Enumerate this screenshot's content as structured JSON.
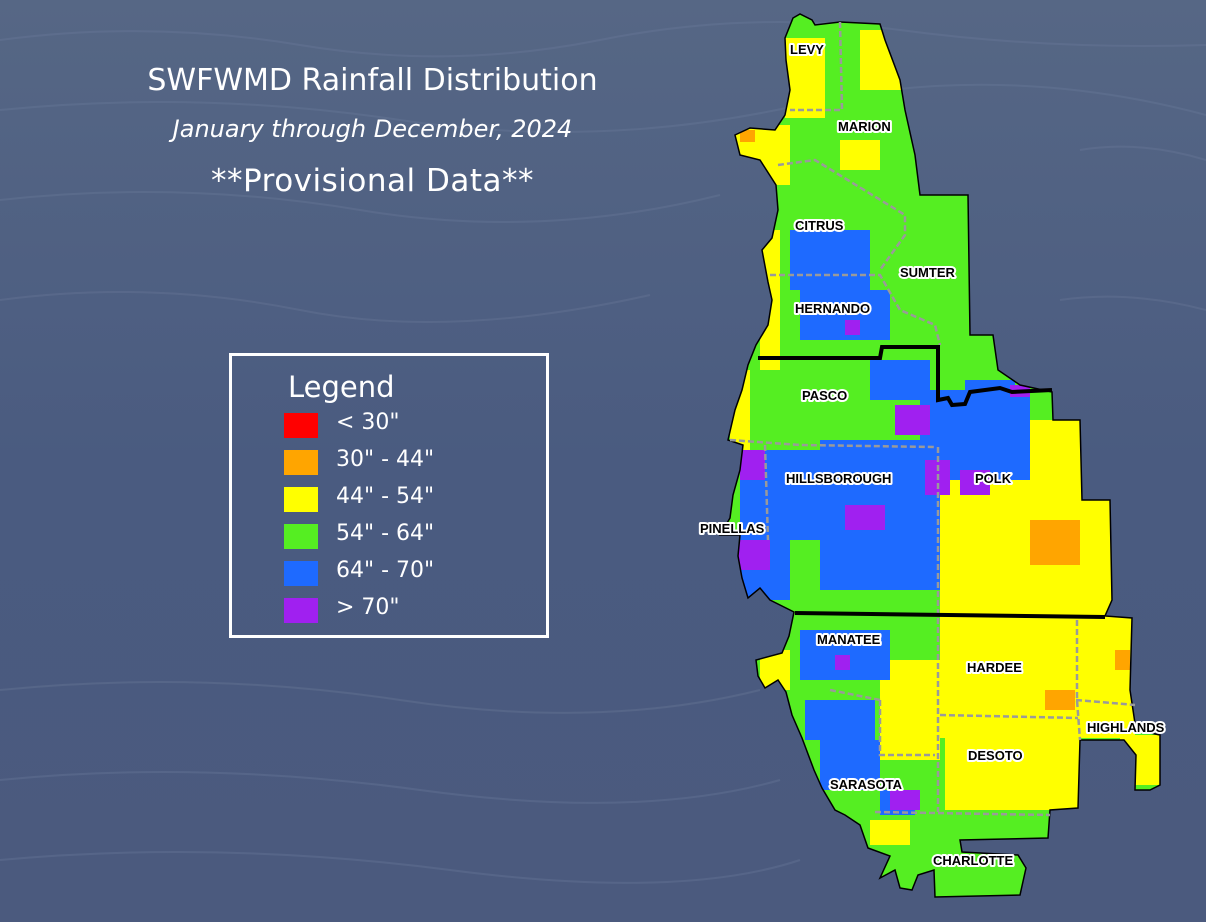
{
  "title": "SWFWMD Rainfall Distribution",
  "subtitle": "January through December, 2024",
  "provisional": "**Provisional Data**",
  "legend": {
    "title": "Legend",
    "items": [
      {
        "label": "< 30\"",
        "color": "#ff0000"
      },
      {
        "label": "30\" - 44\"",
        "color": "#ffa500"
      },
      {
        "label": "44\" - 54\"",
        "color": "#ffff00"
      },
      {
        "label": "54\" - 64\"",
        "color": "#55ee22"
      },
      {
        "label": "64\" - 70\"",
        "color": "#1e6aff"
      },
      {
        "label": "> 70\"",
        "color": "#a020f0"
      }
    ]
  },
  "counties": {
    "levy": "LEVY",
    "marion": "MARION",
    "citrus": "CITRUS",
    "sumter": "SUMTER",
    "hernando": "HERNANDO",
    "pasco": "PASCO",
    "hillsborough": "HILLSBOROUGH",
    "polk": "POLK",
    "pinellas": "PINELLAS",
    "manatee": "MANATEE",
    "hardee": "HARDEE",
    "highlands": "HIGHLANDS",
    "desoto": "DESOTO",
    "sarasota": "SARASOTA",
    "charlotte": "CHARLOTTE"
  }
}
